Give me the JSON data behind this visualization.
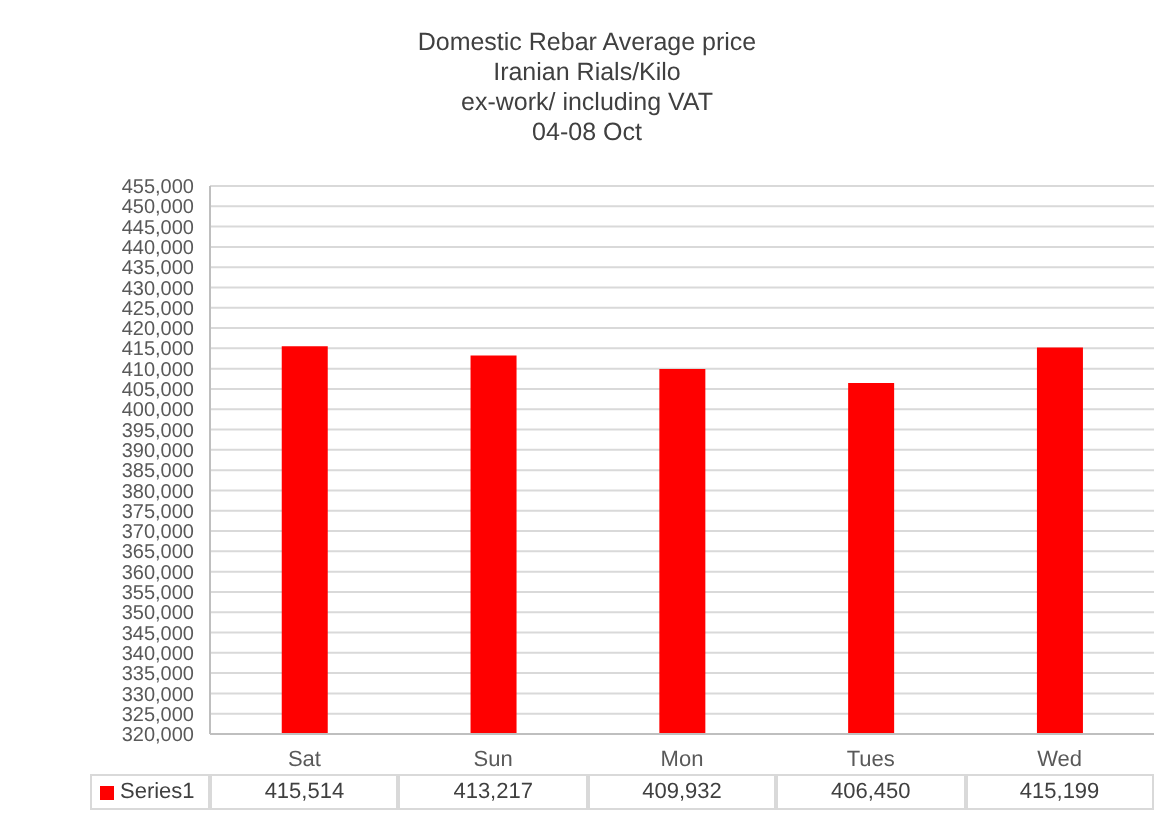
{
  "chart_data": {
    "type": "bar",
    "title": "Domestic Rebar Average price\nIranian Rials/Kilo\nex-work/ including VAT\n04-08 Oct",
    "categories": [
      "Sat",
      "Sun",
      "Mon",
      "Tues",
      "Wed"
    ],
    "series": [
      {
        "name": "Series1",
        "color": "#ff0000",
        "values": [
          415514,
          413217,
          409932,
          406450,
          415199
        ],
        "value_labels": [
          "415,514",
          "413,217",
          "409,932",
          "406,450",
          "415,199"
        ]
      }
    ],
    "ylim": [
      320000,
      455000
    ],
    "yticks": [
      {
        "value": 320000,
        "label": "320,000"
      },
      {
        "value": 325000,
        "label": "325,000"
      },
      {
        "value": 330000,
        "label": "330,000"
      },
      {
        "value": 335000,
        "label": "335,000"
      },
      {
        "value": 340000,
        "label": "340,000"
      },
      {
        "value": 345000,
        "label": "345,000"
      },
      {
        "value": 350000,
        "label": "350,000"
      },
      {
        "value": 355000,
        "label": "355,000"
      },
      {
        "value": 360000,
        "label": "360,000"
      },
      {
        "value": 365000,
        "label": "365,000"
      },
      {
        "value": 370000,
        "label": "370,000"
      },
      {
        "value": 375000,
        "label": "375,000"
      },
      {
        "value": 380000,
        "label": "380,000"
      },
      {
        "value": 385000,
        "label": "385,000"
      },
      {
        "value": 390000,
        "label": "390,000"
      },
      {
        "value": 395000,
        "label": "395,000"
      },
      {
        "value": 400000,
        "label": "400,000"
      },
      {
        "value": 405000,
        "label": "405,000"
      },
      {
        "value": 410000,
        "label": "410,000"
      },
      {
        "value": 415000,
        "label": "415,000"
      },
      {
        "value": 420000,
        "label": "420,000"
      },
      {
        "value": 425000,
        "label": "425,000"
      },
      {
        "value": 430000,
        "label": "430,000"
      },
      {
        "value": 435000,
        "label": "435,000"
      },
      {
        "value": 440000,
        "label": "440,000"
      },
      {
        "value": 445000,
        "label": "445,000"
      },
      {
        "value": 450000,
        "label": "450,000"
      },
      {
        "value": 455000,
        "label": "455,000"
      }
    ],
    "grid": "y",
    "legend": "bottom"
  }
}
